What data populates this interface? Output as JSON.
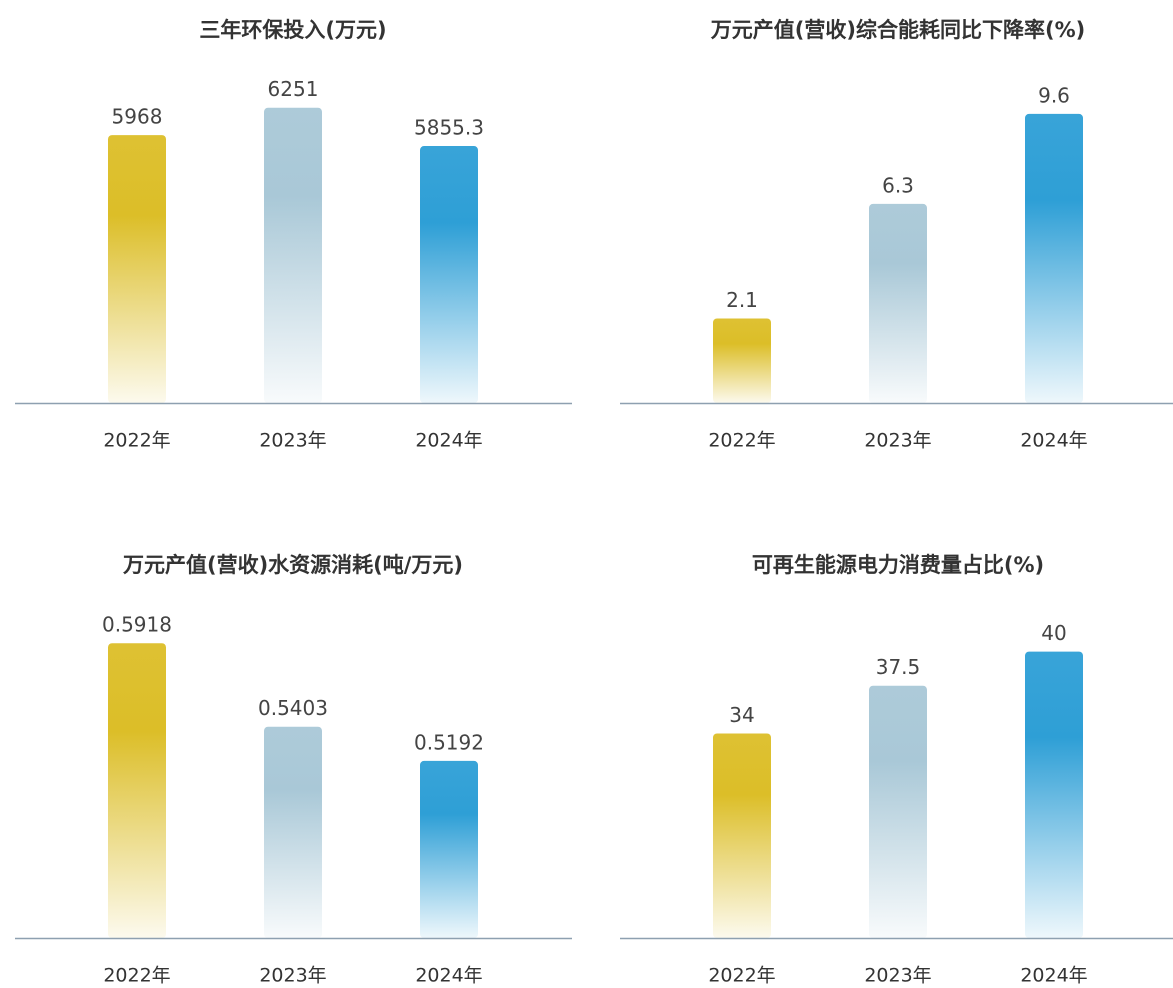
{
  "chart_data": [
    {
      "type": "bar",
      "title": "三年环保投入(万元)",
      "categories": [
        "2022年",
        "2023年",
        "2024年"
      ],
      "values": [
        5968,
        6251,
        5855.3
      ],
      "colors": [
        "#dcbe28",
        "#a9c8d7",
        "#2e9fd6"
      ],
      "ylim": [
        3200,
        6300
      ]
    },
    {
      "type": "bar",
      "title": "万元产值(营收)综合能耗同比下降率(%)",
      "categories": [
        "2022年",
        "2023年",
        "2024年"
      ],
      "values": [
        2.1,
        6.3,
        9.6
      ],
      "colors": [
        "#dcbe28",
        "#a9c8d7",
        "#2e9fd6"
      ],
      "ylim": [
        -1,
        10
      ]
    },
    {
      "type": "bar",
      "title": "万元产值(营收)水资源消耗(吨/万元)",
      "categories": [
        "2022年",
        "2023年",
        "2024年"
      ],
      "values": [
        0.5918,
        0.5403,
        0.5192
      ],
      "colors": [
        "#dcbe28",
        "#a9c8d7",
        "#2e9fd6"
      ],
      "ylim": [
        0.41,
        0.595
      ]
    },
    {
      "type": "bar",
      "title": "可再生能源电力消费量占比(%)",
      "categories": [
        "2022年",
        "2023年",
        "2024年"
      ],
      "values": [
        34,
        37.5,
        40
      ],
      "colors": [
        "#dcbe28",
        "#a9c8d7",
        "#2e9fd6"
      ],
      "ylim": [
        19,
        41
      ]
    }
  ]
}
